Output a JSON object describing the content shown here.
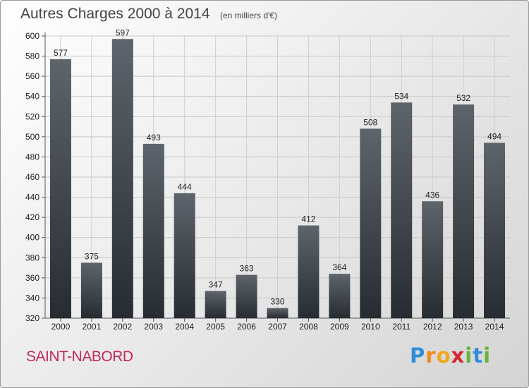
{
  "chart_data": {
    "type": "bar",
    "title": "Autres Charges 2000 à 2014",
    "subtitle": "(en milliers d'€)",
    "xlabel": "",
    "ylabel": "",
    "categories": [
      "2000",
      "2001",
      "2002",
      "2003",
      "2004",
      "2005",
      "2006",
      "2007",
      "2008",
      "2009",
      "2010",
      "2011",
      "2012",
      "2013",
      "2014"
    ],
    "values": [
      577,
      375,
      597,
      493,
      444,
      347,
      363,
      330,
      412,
      364,
      508,
      534,
      436,
      532,
      494
    ],
    "ylim": [
      320,
      600
    ],
    "yticks": [
      320,
      340,
      360,
      380,
      400,
      420,
      440,
      460,
      480,
      500,
      520,
      540,
      560,
      580,
      600
    ],
    "grid": true,
    "bar_color": "#3e444b"
  },
  "footer": {
    "commune": "SAINT-NABORD",
    "brand_letters": [
      {
        "ch": "P",
        "color": "#2f8fd6"
      },
      {
        "ch": "r",
        "color": "#f08a1c"
      },
      {
        "ch": "o",
        "color": "#f0a81c"
      },
      {
        "ch": "x",
        "color": "#d6262d"
      },
      {
        "ch": "i",
        "color": "#67b43a"
      },
      {
        "ch": "t",
        "color": "#2f8fd6"
      },
      {
        "ch": "i",
        "color": "#67b43a"
      }
    ]
  }
}
